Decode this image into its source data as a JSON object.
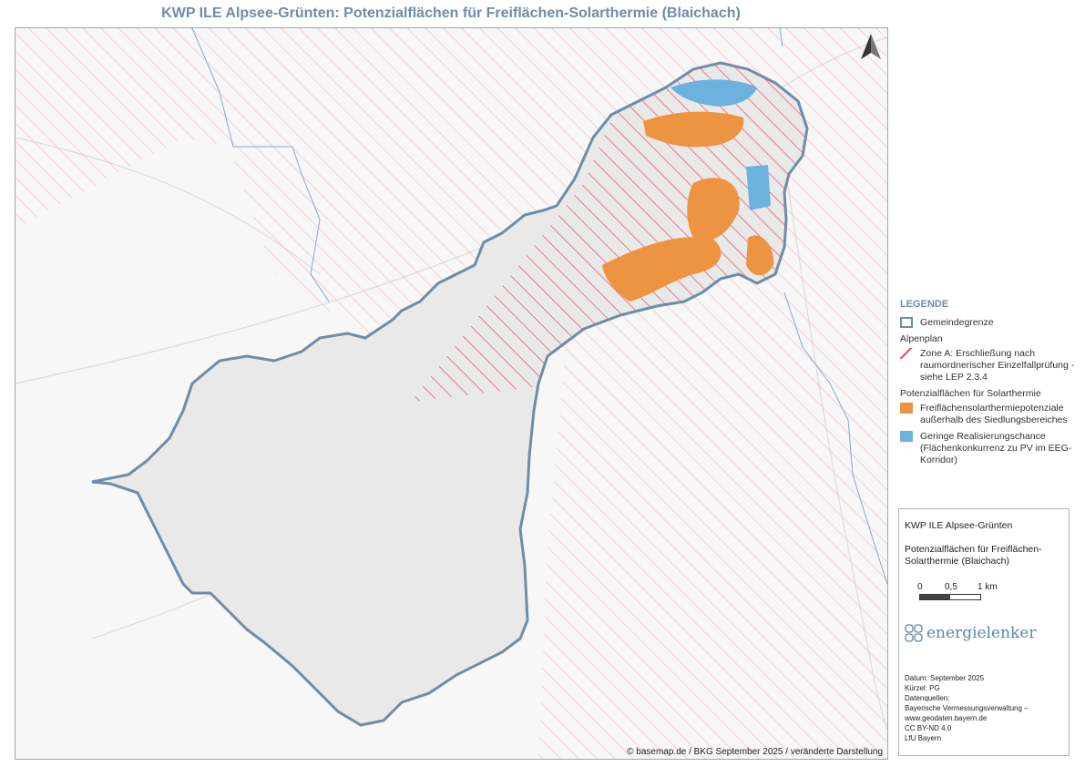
{
  "title": "KWP ILE Alpsee-Grünten: Potenzialflächen für Freiflächen-Solarthermie (Blaichach)",
  "attribution": "© basemap.de / BKG September 2025 / veränderte Darstellung",
  "north_arrow": "north-arrow-icon",
  "colors": {
    "boundary": "#6f8ca8",
    "hatch_light": "#f4b6bf",
    "hatch_strong": "#ee4a5d",
    "orange": "#ec9441",
    "blue": "#6bb2de"
  },
  "legend": {
    "heading": "LEGENDE",
    "boundary_label": "Gemeindegrenze",
    "group1": "Alpenplan",
    "zone_a_label": "Zone A: Erschließung nach raumordnerischer Einzelfallprüfung - siehe LEP 2.3.4",
    "group2": "Potenzialflächen für Solarthermie",
    "orange_label": "Freiflächensolarthermiepotenziale außerhalb des Siedlungsbereiches",
    "blue_label": "Geringe Realisierungschance (Flächenkonkurrenz zu PV im EEG-Korridor)"
  },
  "info": {
    "project": "KWP ILE Alpsee-Grünten",
    "subtitle": "Potenzialflächen für Freiflächen-Solarthermie (Blaichach)",
    "scale": [
      "0",
      "0,5",
      "1 km"
    ],
    "logo": "energielenker",
    "date": "Datum: September 2025",
    "author": "Kürzel: PG",
    "sources_head": "Datenquellen:",
    "source1": "Bayerische Vermessungsverwaltung –",
    "source2": "www.geodaten.bayern.de",
    "license": "CC BY-ND 4.0",
    "source3": "LfU Bayern"
  }
}
